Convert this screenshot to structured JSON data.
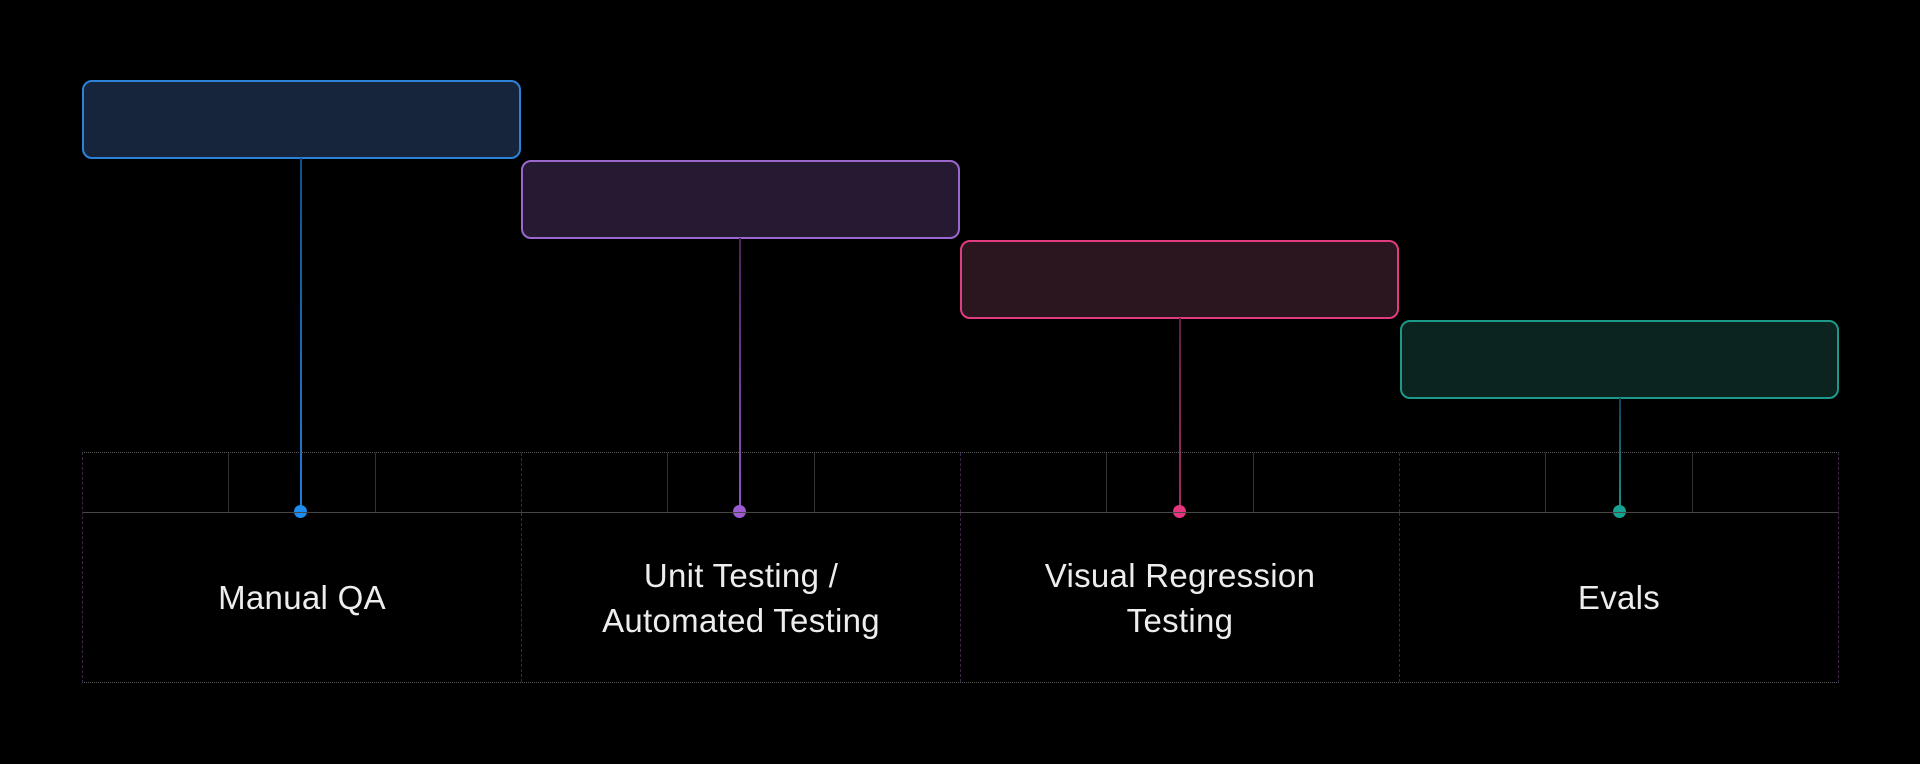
{
  "items": [
    {
      "label": "Manual QA",
      "lines": [
        "Manual QA"
      ],
      "colors": {
        "box_border": "#2b82d6",
        "box_fill": "#16253c",
        "line_start": "#134e8c",
        "line_end": "#1d7fd8",
        "dot": "#1d8ef0"
      }
    },
    {
      "label": "Unit Testing / Automated Testing",
      "lines": [
        "Unit Testing /",
        "Automated Testing"
      ],
      "colors": {
        "box_border": "#9a67ce",
        "box_fill": "#261a33",
        "line_start": "#4d2357",
        "line_end": "#9154c6",
        "dot": "#9c5bd0"
      }
    },
    {
      "label": "Visual Regression Testing",
      "lines": [
        "Visual Regression",
        "Testing"
      ],
      "colors": {
        "box_border": "#e23c80",
        "box_fill": "#2b151f",
        "line_start": "#5e2147",
        "line_end": "#a62a68",
        "dot": "#e5357f"
      }
    },
    {
      "label": "Evals",
      "lines": [
        "Evals"
      ],
      "colors": {
        "box_border": "#1b998a",
        "box_fill": "#0b241f",
        "line_start": "#16405f",
        "line_end": "#189384",
        "dot": "#18a090"
      }
    }
  ],
  "grid": {
    "sections": 4,
    "cells_per_section": 3,
    "line_colors": {
      "outer_dotted": "#5a5a5a",
      "section_dashed": "#3c2547",
      "cell_solid": "#333333",
      "baseline": "#474747"
    }
  },
  "background": "#000000",
  "text_color": "#ededed"
}
